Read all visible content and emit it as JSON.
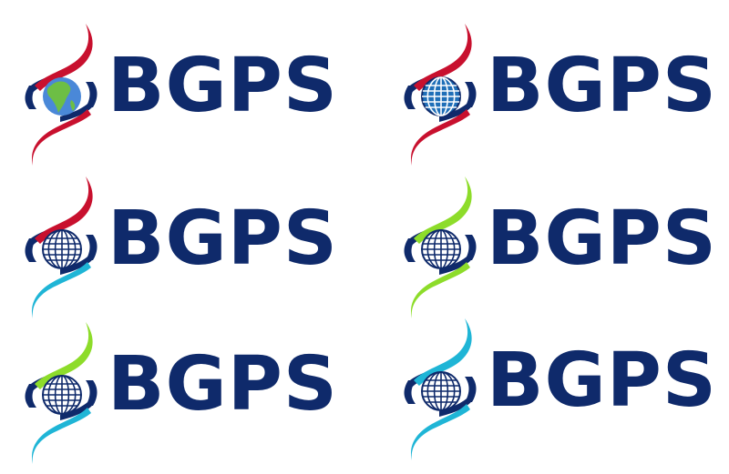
{
  "colors": {
    "navy": "#0f2a6b",
    "red": "#c8102e",
    "cyan": "#1fb5d6",
    "lime": "#8ddc2a",
    "globe_ocean": "#4a88d8",
    "globe_land": "#6dbe45",
    "grid_blue": "#1f6fb8"
  },
  "logos": [
    {
      "text": "BGPS",
      "upper_ribbon": "red",
      "lower_ribbon": "red",
      "globe": "earth-photo"
    },
    {
      "text": "BGPS",
      "upper_ribbon": "red",
      "lower_ribbon": "red",
      "globe": "blue-grid"
    },
    {
      "text": "BGPS",
      "upper_ribbon": "red",
      "lower_ribbon": "cyan",
      "globe": "white-grid"
    },
    {
      "text": "BGPS",
      "upper_ribbon": "lime",
      "lower_ribbon": "lime",
      "globe": "white-grid"
    },
    {
      "text": "BGPS",
      "upper_ribbon": "lime",
      "lower_ribbon": "cyan",
      "globe": "white-grid"
    },
    {
      "text": "BGPS",
      "upper_ribbon": "cyan",
      "lower_ribbon": "cyan",
      "globe": "white-grid"
    }
  ]
}
